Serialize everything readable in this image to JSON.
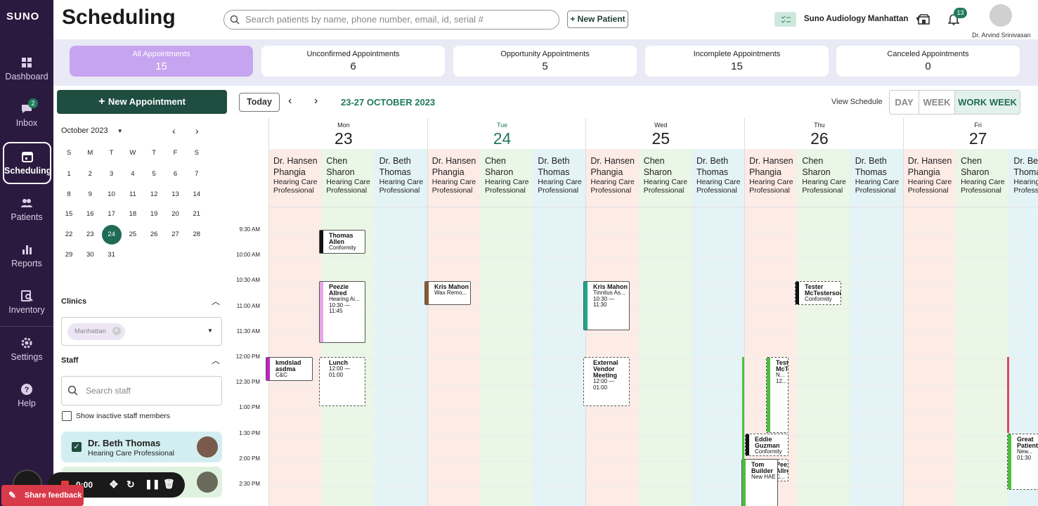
{
  "brand": {
    "logo_text": "SUNO"
  },
  "sidebar": {
    "items": [
      {
        "label": "Dashboard",
        "icon": "dashboard-icon"
      },
      {
        "label": "Inbox",
        "icon": "inbox-icon",
        "badge": "2"
      },
      {
        "label": "Scheduling",
        "icon": "calendar-icon",
        "active": true
      },
      {
        "label": "Patients",
        "icon": "patients-icon"
      },
      {
        "label": "Reports",
        "icon": "reports-icon"
      },
      {
        "label": "Inventory",
        "icon": "inventory-icon"
      },
      {
        "label": "Settings",
        "icon": "gear-icon"
      },
      {
        "label": "Help",
        "icon": "help-icon"
      }
    ]
  },
  "header": {
    "title": "Scheduling",
    "search_placeholder": "Search patients by name, phone number, email, id, serial #",
    "new_patient_label": "New Patient",
    "clinic": "Suno Audiology Manhattan",
    "notification_count": "13",
    "user_name": "Dr. Arvind Srinivasan"
  },
  "stats": [
    {
      "label": "All Appointments",
      "value": "15",
      "active": true
    },
    {
      "label": "Unconfirmed Appointments",
      "value": "6"
    },
    {
      "label": "Opportunity Appointments",
      "value": "5"
    },
    {
      "label": "Incomplete Appointments",
      "value": "15"
    },
    {
      "label": "Canceled Appointments",
      "value": "0"
    }
  ],
  "left_panel": {
    "new_appointment_label": "New Appointment",
    "month_label": "October 2023",
    "weekday_letters": [
      "S",
      "M",
      "T",
      "W",
      "T",
      "F",
      "S"
    ],
    "weeks": [
      [
        "1",
        "2",
        "3",
        "4",
        "5",
        "6",
        "7"
      ],
      [
        "8",
        "9",
        "10",
        "11",
        "12",
        "13",
        "14"
      ],
      [
        "15",
        "16",
        "17",
        "18",
        "19",
        "20",
        "21"
      ],
      [
        "22",
        "23",
        "24",
        "25",
        "26",
        "27",
        "28"
      ],
      [
        "29",
        "30",
        "31",
        "",
        "",
        "",
        ""
      ]
    ],
    "selected_day": "24",
    "clinics_title": "Clinics",
    "clinic_chip": "Manhattan",
    "staff_title": "Staff",
    "staff_search_placeholder": "Search staff",
    "show_inactive_label": "Show inactive staff members",
    "staff": [
      {
        "name": "Dr. Beth Thomas",
        "role": "Hearing Care Professional",
        "checked": true
      }
    ]
  },
  "recorder": {
    "time": "0:00"
  },
  "feedback_label": "Share feedback",
  "calendar": {
    "today_label": "Today",
    "range_label": "23-27 OCTOBER 2023",
    "view_schedule_label": "View Schedule",
    "views": [
      "DAY",
      "WEEK",
      "WORK WEEK"
    ],
    "active_view": "WORK WEEK",
    "days": [
      {
        "dow": "Mon",
        "num": "23"
      },
      {
        "dow": "Tue",
        "num": "24",
        "today": true
      },
      {
        "dow": "Wed",
        "num": "25"
      },
      {
        "dow": "Thu",
        "num": "26"
      },
      {
        "dow": "Fri",
        "num": "27"
      }
    ],
    "providers": [
      {
        "l1": "Dr. Hansen",
        "l2": "Phangia",
        "role1": "Hearing Care",
        "role2": "Professional",
        "color": "#fdebe6"
      },
      {
        "l1": "Chen",
        "l2": "Sharon",
        "role1": "Hearing Care",
        "role2": "Professional",
        "color": "#eaf6e6"
      },
      {
        "l1": "Dr. Beth",
        "l2": "Thomas",
        "role1": "Hearing Care",
        "role2": "Professional",
        "color": "#e4f3f6"
      }
    ],
    "times": [
      "9:30 AM",
      "10:00 AM",
      "10:30 AM",
      "11:00 AM",
      "11:30 AM",
      "12:00 PM",
      "12:30 PM",
      "1:00 PM",
      "1:30 PM",
      "2:00 PM",
      "2:30 PM"
    ],
    "appointments": [
      {
        "name": "Thomas Allen",
        "detail": "Conformity",
        "time": "",
        "color": "#111"
      },
      {
        "name": "Peezie Allred",
        "detail": "Hearing Ai...",
        "time": "10:30 — 11:45",
        "color": "#e7a6e6"
      },
      {
        "name": "Kris Mahon",
        "detail": "Wax Remo...",
        "time": "",
        "color": "#8a5a2b"
      },
      {
        "name": "Kris Mahon",
        "detail": "Tinnitus As...",
        "time": "10:30 — 11:30",
        "color": "#1aa88a"
      },
      {
        "name": "Tester McTesterson",
        "detail": "Conformity",
        "time": "",
        "color": "#111"
      },
      {
        "name": "kmdslad asdma",
        "detail": "C&C",
        "time": "",
        "color": "#c020c8"
      },
      {
        "name": "Lunch",
        "detail": "",
        "time": "12:00 — 01:00",
        "color": "#fff"
      },
      {
        "name": "External Vendor Meeting",
        "detail": "",
        "time": "12:00 — 01:00",
        "color": "#fff"
      },
      {
        "name": "Tester McT...",
        "detail": "N...",
        "time": "12...",
        "color": "#4cbf3c"
      },
      {
        "name": "Eddie Guzman",
        "detail": "Conformity",
        "time": "",
        "color": "#111"
      },
      {
        "name": "Peezie Allred",
        "detail": "C...",
        "time": "",
        "color": "#c020c8"
      },
      {
        "name": "Tom Builder",
        "detail": "New HAE",
        "time": "",
        "color": "#4cbf3c"
      },
      {
        "name": "Great Patient",
        "detail": "New...",
        "time": "01:30",
        "color": "#4cbf3c"
      }
    ],
    "colors": {
      "accent": "#1f7a5a",
      "sidebar": "#2b1a3f",
      "stat_active": "#c7a4ef"
    }
  }
}
